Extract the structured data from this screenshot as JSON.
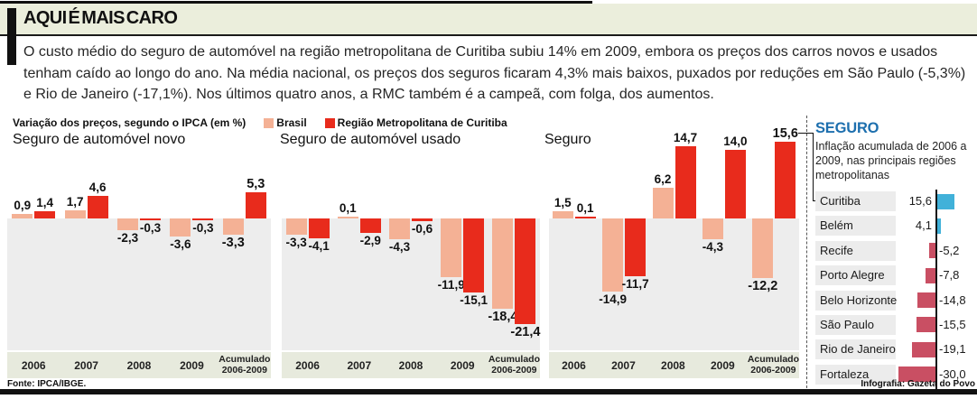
{
  "header": {
    "title": "AQUI É MAIS CARO"
  },
  "intro": "O custo médio do seguro de automóvel na região metropolitana de Curitiba subiu 14% em 2009, embora os preços dos carros novos e usados tenham caído ao longo do ano. Na média nacional, os preços dos seguros ficaram 4,3% mais baixos, puxados por reduções em São Paulo (-5,3%) e Rio de Janeiro (-17,1%). Nos últimos quatro anos, a RMC também é a campeã, com folga, dos aumentos.",
  "legend": {
    "caption": "Variação dos preços, segundo o IPCA (em %)",
    "series": [
      {
        "label": "Brasil",
        "color": "#f4b195"
      },
      {
        "label": "Região Metropolitana de Curitiba",
        "color": "#e82b1c"
      }
    ]
  },
  "chart_data": [
    {
      "type": "bar",
      "title": "Seguro de automóvel novo",
      "unit": "%",
      "categories": [
        "2006",
        "2007",
        "2008",
        "2009",
        "Acumulado 2006-2009"
      ],
      "series": [
        {
          "name": "Brasil",
          "color": "#f4b195",
          "values": [
            0.9,
            1.7,
            -2.3,
            -3.6,
            -3.3
          ]
        },
        {
          "name": "Região Metropolitana de Curitiba",
          "color": "#e82b1c",
          "values": [
            1.4,
            4.6,
            -0.3,
            -0.3,
            5.3
          ]
        }
      ]
    },
    {
      "type": "bar",
      "title": "Seguro de automóvel usado",
      "unit": "%",
      "categories": [
        "2006",
        "2007",
        "2008",
        "2009",
        "Acumulado 2006-2009"
      ],
      "series": [
        {
          "name": "Brasil",
          "color": "#f4b195",
          "values": [
            -3.3,
            0.1,
            -4.3,
            -11.9,
            -18.4
          ]
        },
        {
          "name": "Região Metropolitana de Curitiba",
          "color": "#e82b1c",
          "values": [
            -4.1,
            -2.9,
            -0.6,
            -15.1,
            -21.4
          ]
        }
      ]
    },
    {
      "type": "bar",
      "title": "Seguro",
      "unit": "%",
      "categories": [
        "2006",
        "2007",
        "2008",
        "2009",
        "Acumulado 2006-2009"
      ],
      "series": [
        {
          "name": "Brasil",
          "color": "#f4b195",
          "values": [
            1.5,
            -14.9,
            6.2,
            -4.3,
            -12.2
          ]
        },
        {
          "name": "Região Metropolitana de Curitiba",
          "color": "#e82b1c",
          "values": [
            0.1,
            -11.7,
            14.7,
            14.0,
            15.6
          ]
        }
      ]
    },
    {
      "type": "bar",
      "orientation": "horizontal",
      "title": "SEGURO",
      "subtitle": "Inflação acumulada de 2006 a 2009, nas principais regiões metropolitanas",
      "unit": "%",
      "categories": [
        "Curitiba",
        "Belém",
        "Recife",
        "Porto Alegre",
        "Belo Horizonte",
        "São Paulo",
        "Rio de Janeiro",
        "Fortaleza"
      ],
      "values": [
        15.6,
        4.1,
        -5.2,
        -7.8,
        -14.8,
        -15.5,
        -19.1,
        -30.0
      ]
    }
  ],
  "side_panel": {
    "title": "SEGURO",
    "title_color": "#1d6fae",
    "subtitle": "Inflação acumulada de 2006 a 2009, nas principais regiões metropolitanas",
    "positive_color": "#41b1d9",
    "negative_color": "#c94f63",
    "rows": [
      {
        "label": "Curitiba",
        "value": 15.6
      },
      {
        "label": "Belém",
        "value": 4.1
      },
      {
        "label": "Recife",
        "value": -5.2
      },
      {
        "label": "Porto Alegre",
        "value": -7.8
      },
      {
        "label": "Belo Horizonte",
        "value": -14.8
      },
      {
        "label": "São Paulo",
        "value": -15.5
      },
      {
        "label": "Rio de Janeiro",
        "value": -19.1
      },
      {
        "label": "Fortaleza",
        "value": -30.0
      }
    ]
  },
  "footer": {
    "source": "Fonte: IPCA/IBGE.",
    "credit": "Infografia: Gazeta do Povo"
  }
}
